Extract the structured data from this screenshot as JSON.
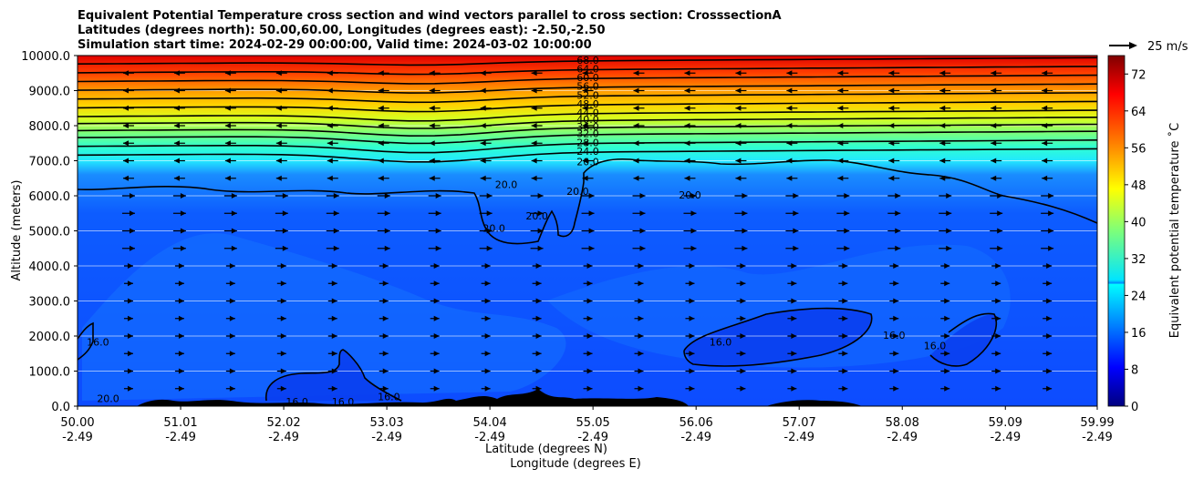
{
  "chart_data": {
    "type": "heatmap",
    "title_lines": [
      "Equivalent Potential Temperature cross section and wind vectors parallel to cross section: CrosssectionA",
      "Latitudes (degrees north): 50.00,60.00, Longitudes (degrees east): -2.50,-2.50",
      "Simulation start time: 2024-02-29 00:00:00, Valid time: 2024-03-02 10:00:00"
    ],
    "ylabel": "Altitude (meters)",
    "xlabel_lat": "Latitude (degrees N)",
    "xlabel_lon": "Longitude (degrees E)",
    "ylim": [
      0,
      10000
    ],
    "y_ticks": [
      "0.0",
      "1000.0",
      "2000.0",
      "3000.0",
      "4000.0",
      "5000.0",
      "6000.0",
      "7000.0",
      "8000.0",
      "9000.0",
      "10000.0"
    ],
    "x_ticks_lat": [
      "50.00",
      "51.01",
      "52.02",
      "53.03",
      "54.04",
      "55.05",
      "56.06",
      "57.07",
      "58.08",
      "59.09",
      "59.99"
    ],
    "x_ticks_lon": [
      "-2.49",
      "-2.49",
      "-2.49",
      "-2.49",
      "-2.49",
      "-2.49",
      "-2.49",
      "-2.49",
      "-2.49",
      "-2.49",
      "-2.49"
    ],
    "xlim": [
      50.0,
      59.99
    ],
    "colorbar": {
      "label": "Equivalent potential temperature ˚C",
      "range": [
        0,
        76
      ],
      "ticks": [
        "0",
        "8",
        "16",
        "24",
        "32",
        "40",
        "48",
        "56",
        "64",
        "72"
      ],
      "colormap": "jet"
    },
    "wind_key_label": "25 m/s",
    "contour_levels": [
      "16.0",
      "20.0",
      "24.0",
      "28.0",
      "32.0",
      "36.0",
      "40.0",
      "44.0",
      "48.0",
      "52.0",
      "56.0",
      "60.0",
      "64.0",
      "68.0"
    ],
    "contour_label_positions": [
      {
        "text": "68.0",
        "lat": 55.0,
        "alt": 9850
      },
      {
        "text": "64.0",
        "lat": 55.0,
        "alt": 9600
      },
      {
        "text": "60.0",
        "lat": 55.0,
        "alt": 9350
      },
      {
        "text": "56.0",
        "lat": 55.0,
        "alt": 9100
      },
      {
        "text": "52.0",
        "lat": 55.0,
        "alt": 8850
      },
      {
        "text": "48.0",
        "lat": 55.0,
        "alt": 8600
      },
      {
        "text": "44.0",
        "lat": 55.0,
        "alt": 8350
      },
      {
        "text": "40.0",
        "lat": 55.0,
        "alt": 8150
      },
      {
        "text": "36.0",
        "lat": 55.0,
        "alt": 7950
      },
      {
        "text": "32.0",
        "lat": 55.0,
        "alt": 7750
      },
      {
        "text": "28.0",
        "lat": 55.0,
        "alt": 7500
      },
      {
        "text": "24.0",
        "lat": 55.0,
        "alt": 7250
      },
      {
        "text": "20.0",
        "lat": 55.0,
        "alt": 6950
      },
      {
        "text": "20.0",
        "lat": 54.08,
        "alt": 5050
      },
      {
        "text": "20.0",
        "lat": 54.2,
        "alt": 6300
      },
      {
        "text": "20.0",
        "lat": 54.5,
        "alt": 5400
      },
      {
        "text": "20.0",
        "lat": 54.9,
        "alt": 6100
      },
      {
        "text": "20.0",
        "lat": 56.0,
        "alt": 6000
      },
      {
        "text": "16.0",
        "lat": 50.2,
        "alt": 1800
      },
      {
        "text": "20.0",
        "lat": 50.3,
        "alt": 200
      },
      {
        "text": "16.0",
        "lat": 52.15,
        "alt": 100
      },
      {
        "text": "16.0",
        "lat": 52.6,
        "alt": 100
      },
      {
        "text": "16.0",
        "lat": 53.05,
        "alt": 250
      },
      {
        "text": "16.0",
        "lat": 56.3,
        "alt": 1800
      },
      {
        "text": "16.0",
        "lat": 58.0,
        "alt": 2000
      },
      {
        "text": "16.0",
        "lat": 58.4,
        "alt": 1700
      }
    ],
    "wind_direction": "mostly southward (arrows point toward lower latitude) near the top, northward (toward higher latitude) in the lower layers"
  }
}
